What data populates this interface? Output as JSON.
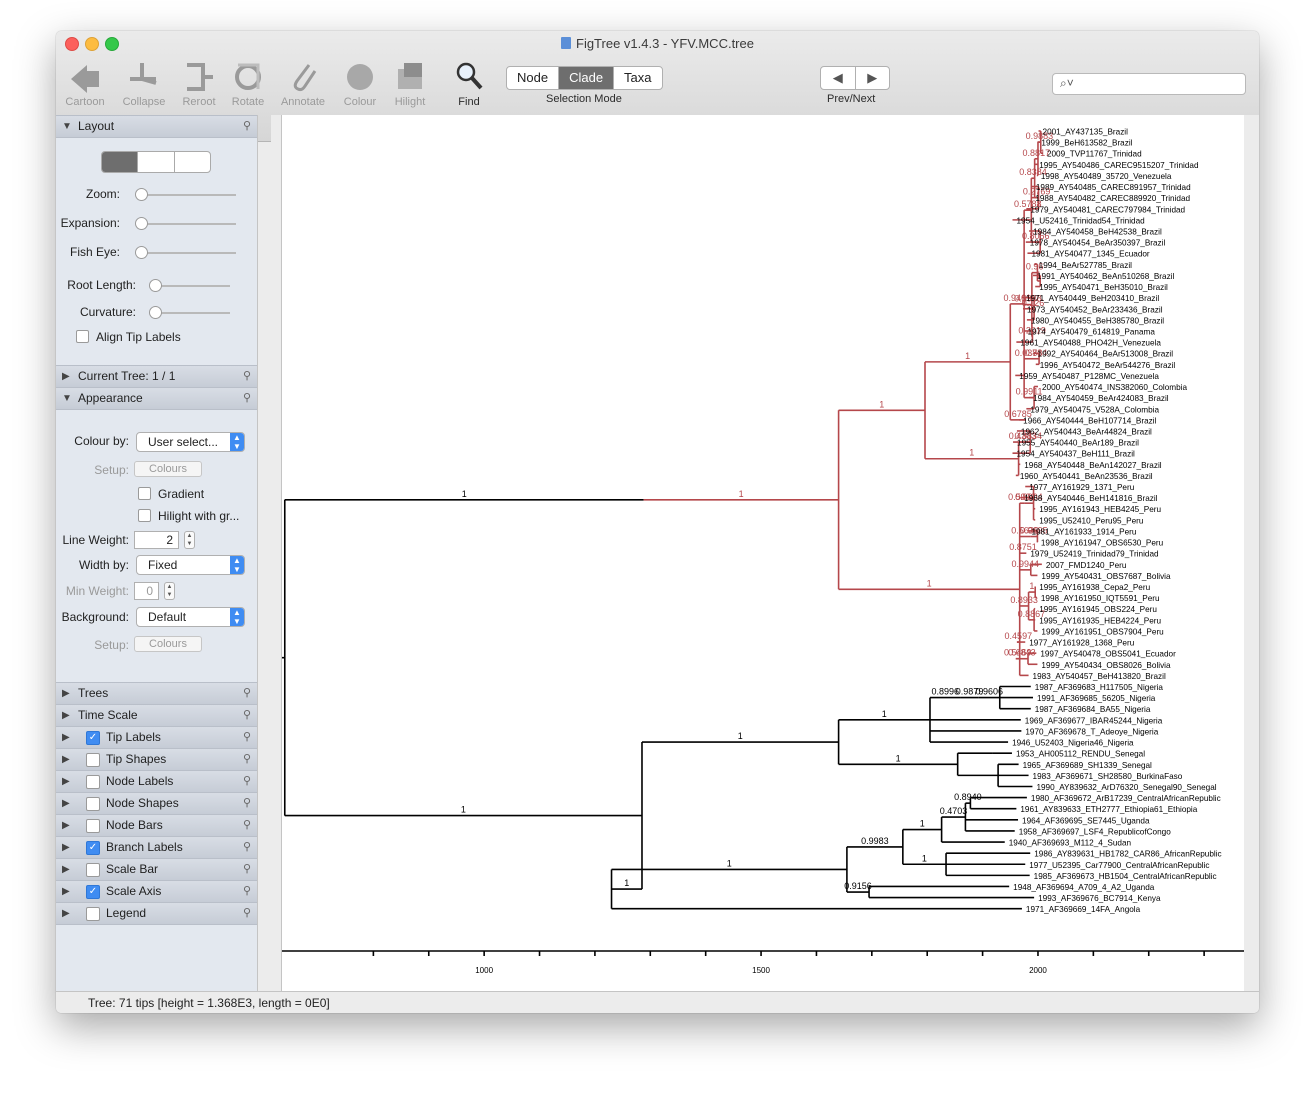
{
  "window": {
    "title": "FigTree v1.4.3 - YFV.MCC.tree"
  },
  "toolbar": {
    "tools": [
      {
        "label": "Cartoon",
        "icon": "cartoon-icon",
        "enabled": false
      },
      {
        "label": "Collapse",
        "icon": "collapse-icon",
        "enabled": false
      },
      {
        "label": "Reroot",
        "icon": "reroot-icon",
        "enabled": false
      },
      {
        "label": "Rotate",
        "icon": "rotate-icon",
        "enabled": false
      },
      {
        "label": "Annotate",
        "icon": "paperclip-icon",
        "enabled": false
      },
      {
        "label": "Colour",
        "icon": "colour-icon",
        "enabled": false
      },
      {
        "label": "Hilight",
        "icon": "hilight-icon",
        "enabled": false
      },
      {
        "label": "Find",
        "icon": "magnifier-icon",
        "enabled": true
      }
    ],
    "selection_mode": {
      "label": "Selection Mode",
      "options": [
        "Node",
        "Clade",
        "Taxa"
      ],
      "selected": "Clade"
    },
    "prevnext_label": "Prev/Next",
    "search": {
      "placeholder": "",
      "icon": "search-icon"
    }
  },
  "panel": {
    "layout": {
      "title": "Layout",
      "sliders": [
        {
          "label": "Zoom:",
          "value": 0
        },
        {
          "label": "Expansion:",
          "value": 0
        },
        {
          "label": "Fish Eye:",
          "value": 0
        },
        {
          "label": "Root Length:",
          "value": 0
        },
        {
          "label": "Curvature:",
          "value": 0
        }
      ],
      "align_tip_labels": "Align Tip Labels"
    },
    "current_tree": "Current Tree: 1 / 1",
    "appearance": {
      "title": "Appearance",
      "colour_by_label": "Colour by:",
      "colour_by_value": "User select...",
      "setup_label": "Setup:",
      "colours_button": "Colours",
      "gradient": "Gradient",
      "hilight": "Hilight with gr...",
      "line_weight_label": "Line Weight:",
      "line_weight_value": "2",
      "width_by_label": "Width by:",
      "width_by_value": "Fixed",
      "min_weight_label": "Min Weight:",
      "min_weight_value": "0",
      "background_label": "Background:",
      "background_value": "Default",
      "setup2_label": "Setup:",
      "colours2_button": "Colours"
    },
    "sections": [
      {
        "label": "Trees",
        "checkbox": null
      },
      {
        "label": "Time Scale",
        "checkbox": null
      },
      {
        "label": "Tip Labels",
        "checkbox": true
      },
      {
        "label": "Tip Shapes",
        "checkbox": false
      },
      {
        "label": "Node Labels",
        "checkbox": false
      },
      {
        "label": "Node Shapes",
        "checkbox": false
      },
      {
        "label": "Node Bars",
        "checkbox": false
      },
      {
        "label": "Branch Labels",
        "checkbox": true
      },
      {
        "label": "Scale Bar",
        "checkbox": false
      },
      {
        "label": "Scale Axis",
        "checkbox": true
      },
      {
        "label": "Legend",
        "checkbox": false
      }
    ]
  },
  "status": "Tree: 71 tips [height = 1.368E3, length = 0E0]",
  "colors": {
    "red_clade": "#b5474b",
    "black": "#000000"
  },
  "tree": {
    "axis": {
      "ticks": [
        1000,
        1500,
        2000
      ],
      "range": [
        635,
        2372
      ]
    },
    "tips": [
      "2001_AY437135_Brazil",
      "1999_BeH613582_Brazil",
      "2009_TVP11767_Trinidad",
      "1995_AY540486_CAREC9515207_Trinidad",
      "1998_AY540489_35720_Venezuela",
      "1989_AY540485_CAREC891957_Trinidad",
      "1988_AY540482_CAREC889920_Trinidad",
      "1979_AY540481_CAREC797984_Trinidad",
      "1954_U52416_Trinidad54_Trinidad",
      "1984_AY540458_BeH42538_Brazil",
      "1978_AY540454_BeAr350397_Brazil",
      "1981_AY540477_1345_Ecuador",
      "1994_BeAr527785_Brazil",
      "1991_AY540462_BeAn510268_Brazil",
      "1995_AY540471_BeH35010_Brazil",
      "1971_AY540449_BeH203410_Brazil",
      "1973_AY540452_BeAr233436_Brazil",
      "1980_AY540455_BeH385780_Brazil",
      "1974_AY540479_614819_Panama",
      "1961_AY540488_PHO42H_Venezuela",
      "1992_AY540464_BeAr513008_Brazil",
      "1996_AY540472_BeAr544276_Brazil",
      "1959_AY540487_P128MC_Venezuela",
      "2000_AY540474_INS382060_Colombia",
      "1984_AY540459_BeAr424083_Brazil",
      "1979_AY540475_V528A_Colombia",
      "1966_AY540444_BeH107714_Brazil",
      "1962_AY540443_BeAr44824_Brazil",
      "1955_AY540440_BeAr189_Brazil",
      "1954_AY540437_BeH111_Brazil",
      "1968_AY540448_BeAn142027_Brazil",
      "1960_AY540441_BeAn23536_Brazil",
      "1977_AY161929_1371_Peru",
      "1968_AY540446_BeH141816_Brazil",
      "1995_AY161943_HEB4245_Peru",
      "1995_U52410_Peru95_Peru",
      "1981_AY161933_1914_Peru",
      "1998_AY161947_OBS6530_Peru",
      "1979_U52419_Trinidad79_Trinidad",
      "2007_FMD1240_Peru",
      "1999_AY540431_OBS7687_Bolivia",
      "1995_AY161938_Cepa2_Peru",
      "1998_AY161950_IQT5591_Peru",
      "1995_AY161945_OBS224_Peru",
      "1995_AY161935_HEB4224_Peru",
      "1999_AY161951_OBS7904_Peru",
      "1977_AY161928_1368_Peru",
      "1997_AY540478_OBS5041_Ecuador",
      "1999_AY540434_OBS8026_Bolivia",
      "1983_AY540457_BeH413820_Brazil",
      "1987_AF369683_H117505_Nigeria",
      "1991_AF369685_56205_Nigeria",
      "1987_AF369684_BA55_Nigeria",
      "1969_AF369677_IBAR45244_Nigeria",
      "1970_AF369678_T_Adeoye_Nigeria",
      "1946_U52403_Nigeria46_Nigeria",
      "1953_AH005112_RENDU_Senegal",
      "1965_AF369689_SH1339_Senegal",
      "1983_AF369671_SH28580_BurkinaFaso",
      "1990_AY839632_ArD76320_Senegal90_Senegal",
      "1980_AF369672_ArB17239_CentralAfricanRepublic",
      "1961_AY839633_ETH2777_Ethiopia61_Ethiopia",
      "1964_AF369695_SE7445_Uganda",
      "1958_AF369697_LSF4_RepublicofCongo",
      "1940_AF369693_M112_4_Sudan",
      "1986_AY839631_HB1782_CAR86_AfricanRepublic",
      "1977_U52395_Car77900_CentralAfricanRepublic",
      "1985_AF369673_HB1504_CentralAfricanRepublic",
      "1948_AF369694_A709_4_A2_Uganda",
      "1993_AF369676_BC7914_Kenya",
      "1971_AF369669_14FA_Angola"
    ]
  }
}
